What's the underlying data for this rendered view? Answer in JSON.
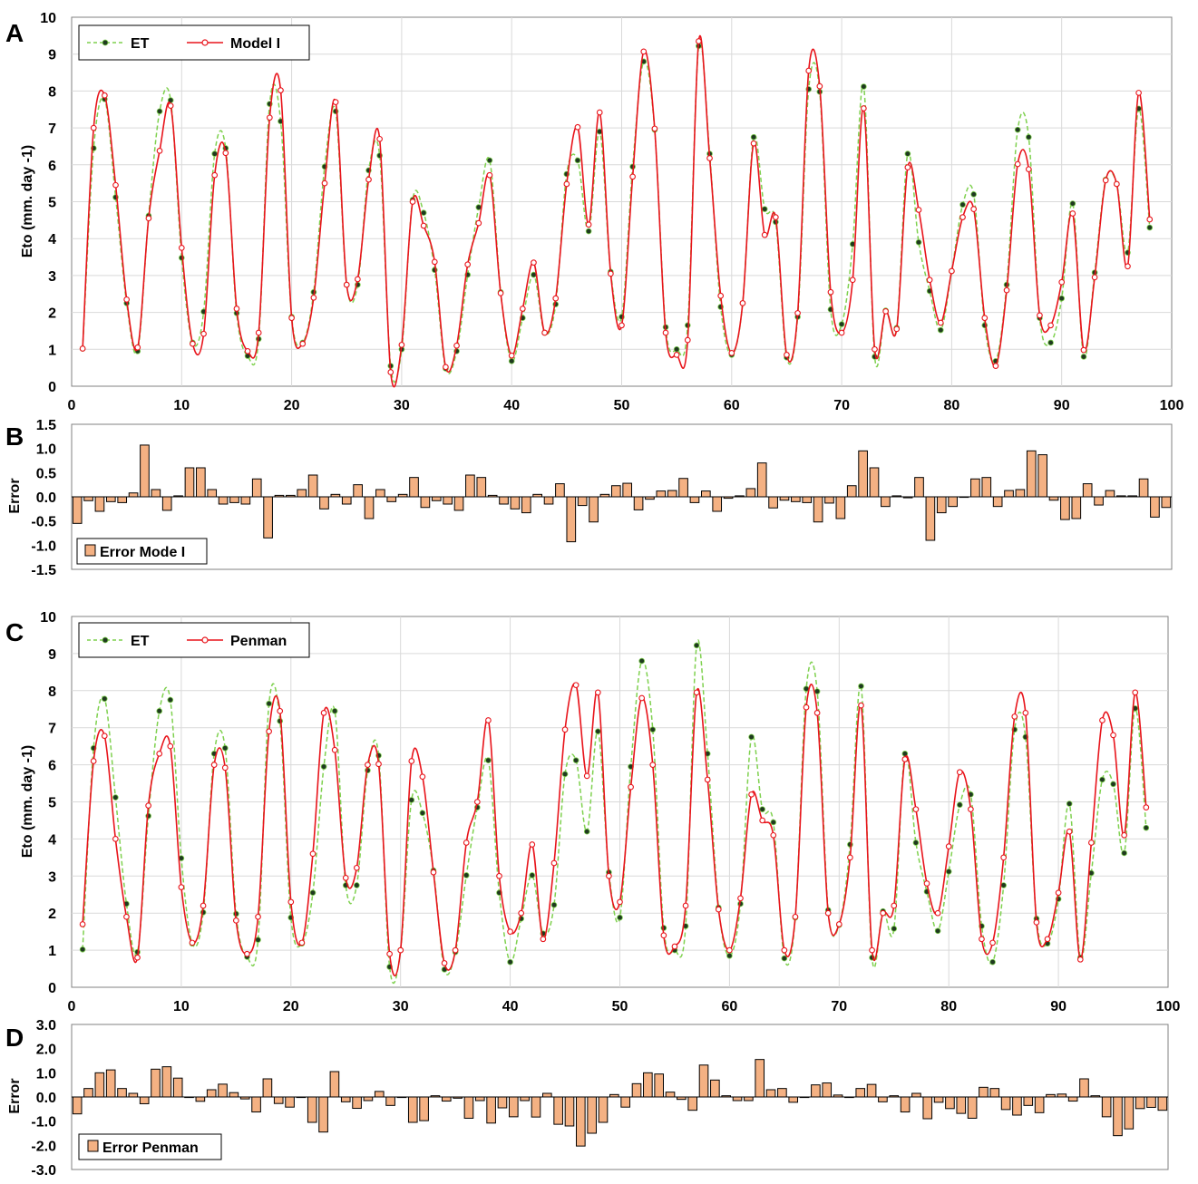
{
  "panels": {
    "A": {
      "letter": "A",
      "ylabel": "Eto (mm. day -1)",
      "legend": [
        "ET",
        "Model I"
      ]
    },
    "B": {
      "letter": "B",
      "ylabel": "Error",
      "legend": [
        "Error Mode I"
      ]
    },
    "C": {
      "letter": "C",
      "ylabel": "Eto (mm. day -1)",
      "legend": [
        "ET",
        "Penman"
      ]
    },
    "D": {
      "letter": "D",
      "ylabel": "Error",
      "legend": [
        "Error Penman"
      ]
    }
  },
  "colors": {
    "et_line": "#7fd14f",
    "et_marker": "#1f3a1f",
    "model_line": "#e8141b",
    "error_fill": "#f4b183",
    "error_stroke": "#000000",
    "grid": "#d9d9d9"
  },
  "chart_data": [
    {
      "id": "A",
      "type": "line",
      "title": "",
      "xlabel": "",
      "ylabel": "Eto (mm. day -1)",
      "xlim": [
        0,
        100
      ],
      "ylim": [
        0,
        10
      ],
      "xticks": [
        0,
        10,
        20,
        30,
        40,
        50,
        60,
        70,
        80,
        90,
        100
      ],
      "yticks": [
        0,
        1,
        2,
        3,
        4,
        5,
        6,
        7,
        8,
        9,
        10
      ],
      "grid": true,
      "legend_position": "top-left",
      "series": [
        {
          "name": "ET",
          "style": "dashed-smooth",
          "values": [
            1.02,
            6.45,
            7.78,
            5.12,
            2.25,
            0.95,
            4.62,
            7.45,
            7.75,
            3.48,
            1.18,
            2.02,
            6.3,
            6.45,
            1.98,
            0.82,
            1.28,
            7.65,
            7.18,
            1.88,
            1.18,
            2.55,
            5.95,
            7.45,
            2.75,
            2.75,
            5.85,
            6.25,
            0.55,
            1.0,
            5.05,
            4.7,
            3.15,
            0.48,
            0.95,
            3.02,
            4.85,
            6.12,
            2.55,
            0.68,
            1.85,
            3.02,
            1.45,
            2.22,
            5.75,
            6.12,
            4.2,
            6.9,
            3.1,
            1.88,
            5.95,
            8.8,
            6.95,
            1.6,
            1.0,
            1.65,
            9.22,
            6.3,
            2.15,
            0.85,
            2.25,
            6.75,
            4.8,
            4.45,
            0.78,
            1.88,
            8.05,
            7.98,
            2.08,
            1.68,
            3.85,
            8.12,
            0.8,
            2.05,
            1.58,
            6.3,
            3.9,
            2.58,
            1.52,
            3.12,
            4.92,
            5.2,
            1.65,
            0.68,
            2.75,
            6.95,
            6.75,
            1.85,
            1.18,
            2.38,
            4.95,
            0.8,
            3.08,
            5.6,
            5.48,
            3.62,
            7.52,
            4.3
          ]
        },
        {
          "name": "Model I",
          "style": "solid-smooth",
          "values": [
            1.02,
            7.0,
            7.88,
            5.45,
            2.35,
            1.05,
            4.55,
            6.38,
            7.6,
            3.75,
            1.15,
            1.42,
            5.72,
            6.32,
            2.1,
            0.95,
            1.45,
            7.28,
            8.02,
            1.85,
            1.15,
            2.4,
            5.5,
            7.7,
            2.75,
            2.9,
            5.6,
            6.7,
            0.38,
            1.12,
            5.0,
            4.35,
            3.37,
            0.52,
            1.1,
            3.3,
            4.42,
            5.72,
            2.52,
            0.83,
            2.1,
            3.35,
            1.45,
            2.38,
            5.48,
            7.02,
            4.38,
            7.42,
            3.05,
            1.65,
            5.68,
            9.07,
            6.98,
            1.45,
            0.85,
            1.25,
            9.35,
            6.18,
            2.45,
            0.9,
            2.25,
            6.58,
            4.1,
            4.58,
            0.85,
            1.98,
            8.55,
            8.13,
            2.55,
            1.45,
            2.88,
            7.53,
            1.0,
            2.03,
            1.55,
            5.93,
            4.78,
            2.88,
            1.72,
            3.12,
            4.58,
            4.8,
            1.85,
            0.55,
            2.6,
            6.02,
            5.88,
            1.92,
            1.65,
            2.82,
            4.68,
            0.98,
            2.95,
            5.58,
            5.48,
            3.25,
            7.95,
            4.52
          ]
        }
      ]
    },
    {
      "id": "B",
      "type": "bar",
      "title": "",
      "xlabel": "",
      "ylabel": "Error",
      "xlim": [
        0,
        100
      ],
      "ylim": [
        -1.5,
        1.5
      ],
      "yticks": [
        -1.5,
        -1.0,
        -0.5,
        0.0,
        0.5,
        1.0,
        1.5
      ],
      "grid": false,
      "legend_position": "bottom-left",
      "series": [
        {
          "name": "Error Mode I",
          "values": [
            -0.55,
            -0.08,
            -0.3,
            -0.1,
            -0.12,
            0.08,
            1.07,
            0.15,
            -0.28,
            0.02,
            0.6,
            0.6,
            0.15,
            -0.15,
            -0.12,
            -0.15,
            0.37,
            -0.85,
            0.03,
            0.03,
            0.15,
            0.45,
            -0.25,
            0.05,
            -0.15,
            0.25,
            -0.45,
            0.15,
            -0.1,
            0.05,
            0.4,
            -0.22,
            -0.08,
            -0.15,
            -0.28,
            0.45,
            0.4,
            0.03,
            -0.15,
            -0.25,
            -0.33,
            0.05,
            -0.15,
            0.27,
            -0.93,
            -0.18,
            -0.52,
            0.05,
            0.23,
            0.28,
            -0.27,
            -0.05,
            0.12,
            0.13,
            0.38,
            -0.12,
            0.12,
            -0.3,
            -0.03,
            0.02,
            0.17,
            0.7,
            -0.23,
            -0.07,
            -0.1,
            -0.12,
            -0.52,
            -0.13,
            -0.45,
            0.23,
            0.95,
            0.6,
            -0.2,
            0.02,
            -0.02,
            0.4,
            -0.9,
            -0.33,
            -0.2,
            0.0,
            0.37,
            0.4,
            -0.2,
            0.13,
            0.15,
            0.95,
            0.87,
            -0.07,
            -0.47,
            -0.45,
            0.27,
            -0.17,
            0.13,
            0.02,
            0.02,
            0.37,
            -0.42,
            -0.22
          ]
        }
      ]
    },
    {
      "id": "C",
      "type": "line",
      "title": "",
      "xlabel": "",
      "ylabel": "Eto (mm. day -1)",
      "xlim": [
        0,
        100
      ],
      "ylim": [
        0,
        10
      ],
      "xticks": [
        0,
        10,
        20,
        30,
        40,
        50,
        60,
        70,
        80,
        90,
        100
      ],
      "yticks": [
        0,
        1,
        2,
        3,
        4,
        5,
        6,
        7,
        8,
        9,
        10
      ],
      "grid": true,
      "legend_position": "top-left",
      "series": [
        {
          "name": "ET",
          "style": "dashed-smooth",
          "values": [
            1.02,
            6.45,
            7.78,
            5.12,
            2.25,
            0.95,
            4.62,
            7.45,
            7.75,
            3.48,
            1.18,
            2.02,
            6.3,
            6.45,
            1.98,
            0.82,
            1.28,
            7.65,
            7.18,
            1.88,
            1.18,
            2.55,
            5.95,
            7.45,
            2.75,
            2.75,
            5.85,
            6.25,
            0.55,
            1.0,
            5.05,
            4.7,
            3.15,
            0.48,
            0.95,
            3.02,
            4.85,
            6.12,
            2.55,
            0.68,
            1.85,
            3.02,
            1.45,
            2.22,
            5.75,
            6.12,
            4.2,
            6.9,
            3.1,
            1.88,
            5.95,
            8.8,
            6.95,
            1.6,
            1.0,
            1.65,
            9.22,
            6.3,
            2.15,
            0.85,
            2.25,
            6.75,
            4.8,
            4.45,
            0.78,
            1.88,
            8.05,
            7.98,
            2.08,
            1.68,
            3.85,
            8.12,
            0.8,
            2.05,
            1.58,
            6.3,
            3.9,
            2.58,
            1.52,
            3.12,
            4.92,
            5.2,
            1.65,
            0.68,
            2.75,
            6.95,
            6.75,
            1.85,
            1.18,
            2.38,
            4.95,
            0.8,
            3.08,
            5.6,
            5.48,
            3.62,
            7.52,
            4.3
          ]
        },
        {
          "name": "Penman",
          "style": "solid-smooth",
          "values": [
            1.7,
            6.1,
            6.78,
            4.0,
            1.9,
            0.8,
            4.9,
            6.3,
            6.5,
            2.7,
            1.2,
            2.2,
            6.0,
            5.92,
            1.8,
            0.9,
            1.9,
            6.9,
            7.45,
            2.3,
            1.2,
            3.6,
            7.4,
            6.4,
            2.95,
            3.22,
            6.0,
            6.02,
            0.9,
            1.0,
            6.1,
            5.68,
            3.1,
            0.65,
            1.0,
            3.9,
            5.0,
            7.2,
            3.0,
            1.5,
            2.0,
            3.85,
            1.3,
            3.35,
            6.95,
            8.15,
            5.7,
            7.95,
            3.0,
            2.3,
            5.4,
            7.8,
            6.0,
            1.4,
            1.1,
            2.2,
            7.95,
            5.6,
            2.1,
            1.0,
            2.4,
            5.2,
            4.5,
            4.1,
            1.0,
            1.9,
            7.55,
            7.4,
            2.0,
            1.7,
            3.5,
            7.6,
            1.0,
            2.0,
            2.2,
            6.15,
            4.8,
            2.8,
            2.0,
            3.8,
            5.8,
            4.8,
            1.3,
            1.2,
            3.5,
            7.3,
            7.4,
            1.75,
            1.3,
            2.55,
            4.2,
            0.75,
            3.9,
            7.2,
            6.8,
            4.1,
            7.95,
            4.85
          ]
        }
      ]
    },
    {
      "id": "D",
      "type": "bar",
      "title": "",
      "xlabel": "",
      "ylabel": "Error",
      "xlim": [
        0,
        100
      ],
      "ylim": [
        -3.0,
        3.0
      ],
      "yticks": [
        -3.0,
        -2.0,
        -1.0,
        0.0,
        1.0,
        2.0,
        3.0
      ],
      "grid": false,
      "legend_position": "bottom-left",
      "series": [
        {
          "name": "Error Penman",
          "values": [
            -0.7,
            0.35,
            1.0,
            1.12,
            0.35,
            0.15,
            -0.28,
            1.15,
            1.25,
            0.78,
            -0.02,
            -0.18,
            0.3,
            0.53,
            0.18,
            -0.08,
            -0.62,
            0.75,
            -0.27,
            -0.42,
            -0.02,
            -1.05,
            -1.45,
            1.05,
            -0.2,
            -0.47,
            -0.15,
            0.23,
            -0.35,
            0.0,
            -1.05,
            -0.98,
            0.05,
            -0.17,
            -0.05,
            -0.88,
            -0.15,
            -1.08,
            -0.45,
            -0.82,
            -0.15,
            -0.83,
            0.15,
            -1.13,
            -1.2,
            -2.03,
            -1.5,
            -1.05,
            0.1,
            -0.42,
            0.55,
            1.0,
            0.95,
            0.2,
            -0.1,
            -0.55,
            1.32,
            0.7,
            0.05,
            -0.15,
            -0.15,
            1.55,
            0.3,
            0.35,
            -0.22,
            -0.02,
            0.5,
            0.58,
            0.08,
            -0.02,
            0.35,
            0.52,
            -0.2,
            0.05,
            -0.62,
            0.15,
            -0.9,
            -0.22,
            -0.48,
            -0.68,
            -0.88,
            0.4,
            0.35,
            -0.52,
            -0.75,
            -0.35,
            -0.65,
            0.1,
            0.12,
            -0.17,
            0.75,
            0.05,
            -0.82,
            -1.6,
            -1.32,
            -0.48,
            -0.43,
            -0.55
          ]
        }
      ]
    }
  ]
}
